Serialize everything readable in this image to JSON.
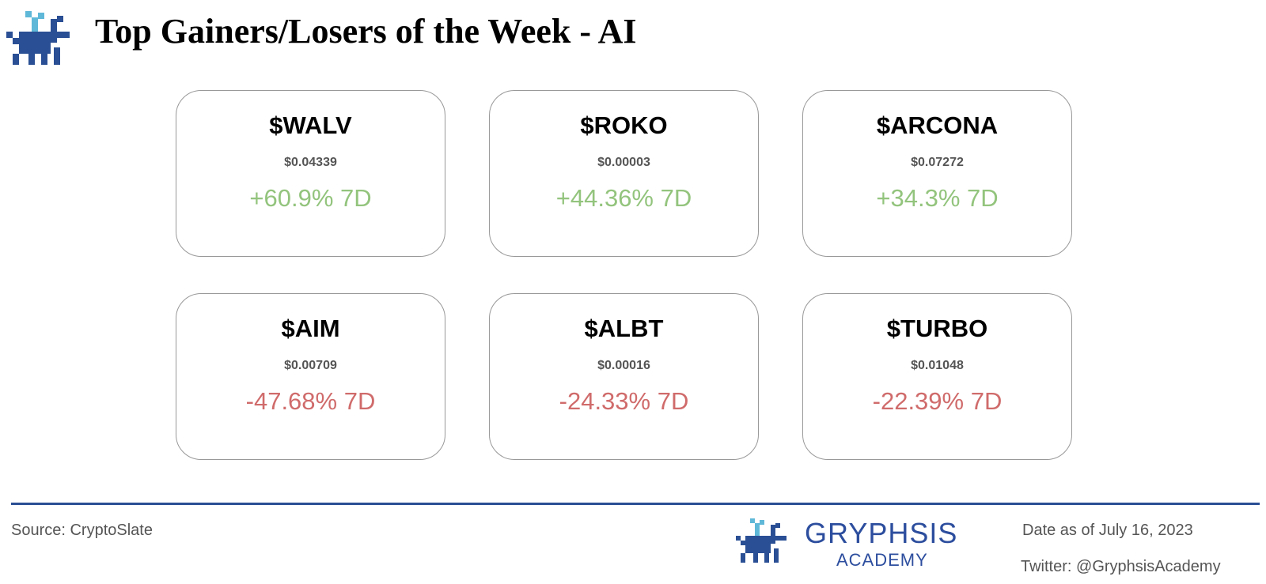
{
  "header": {
    "title": "Top Gainers/Losers of the Week - AI"
  },
  "cards": [
    {
      "ticker": "$WALV",
      "price": "$0.04339",
      "change": "+60.9% 7D",
      "color": "#93c47d"
    },
    {
      "ticker": "$ROKO",
      "price": "$0.00003",
      "change": "+44.36% 7D",
      "color": "#93c47d"
    },
    {
      "ticker": "$ARCONA",
      "price": "$0.07272",
      "change": "+34.3% 7D",
      "color": "#93c47d"
    },
    {
      "ticker": "$AIM",
      "price": "$0.00709",
      "change": "-47.68% 7D",
      "color": "#d06b6b"
    },
    {
      "ticker": "$ALBT",
      "price": "$0.00016",
      "change": "-24.33% 7D",
      "color": "#d06b6b"
    },
    {
      "ticker": "$TURBO",
      "price": "$0.01048",
      "change": "-22.39% 7D",
      "color": "#d06b6b"
    }
  ],
  "footer": {
    "source": "Source: CryptoSlate",
    "brand": "GRYPHSIS",
    "brand_sub": "ACADEMY",
    "date": "Date as of July 16, 2023",
    "twitter": "Twitter: @GryphsisAcademy"
  }
}
